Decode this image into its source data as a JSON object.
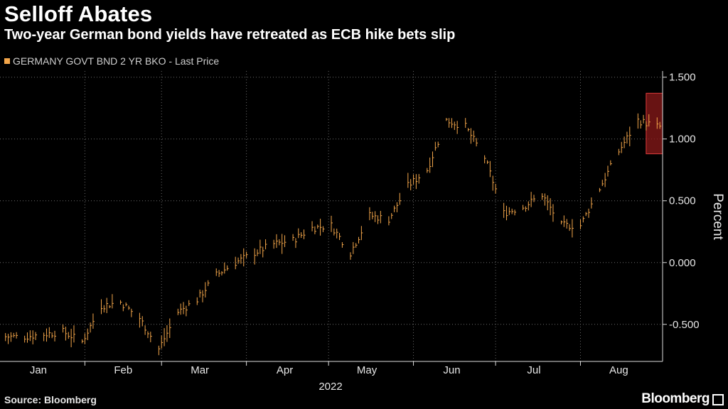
{
  "header": {
    "title": "Selloff Abates",
    "subtitle": "Two-year German bond yields have retreated as ECB hike bets slip"
  },
  "footer": {
    "source": "Source: Bloomberg",
    "brand": "Bloomberg"
  },
  "colors": {
    "background": "#000000",
    "series": "#f3a64a",
    "highlight_fill": "#8b1a1a",
    "highlight_border": "#e03c3c",
    "grid": "#6a6a6a"
  },
  "chart_data": {
    "type": "line",
    "style": "high-low bars",
    "title": "Selloff Abates",
    "subtitle": "Two-year German bond yields have retreated as ECB hike bets slip",
    "ylabel": "Percent",
    "xlabel": "2022",
    "ylim": [
      -0.8,
      1.55
    ],
    "yticks": [
      -0.5,
      0.0,
      0.5,
      1.0,
      1.5
    ],
    "ytick_labels": [
      "-0.500",
      "0.000",
      "0.500",
      "1.000",
      "1.500"
    ],
    "x_start": "2022-01-01",
    "x_end": "2022-08-31",
    "xtick_labels": [
      "Jan",
      "Feb",
      "Mar",
      "Apr",
      "May",
      "Jun",
      "Jul",
      "Aug"
    ],
    "xtick_dates": [
      "2022-01-15",
      "2022-02-15",
      "2022-03-15",
      "2022-04-15",
      "2022-05-15",
      "2022-06-15",
      "2022-07-15",
      "2022-08-15"
    ],
    "grid": true,
    "legend": "top-left",
    "series": [
      {
        "name": "GERMANY GOVT BND 2 YR BKO - Last Price",
        "points": [
          [
            "2022-01-03",
            -0.6
          ],
          [
            "2022-01-10",
            -0.6
          ],
          [
            "2022-01-17",
            -0.58
          ],
          [
            "2022-01-24",
            -0.56
          ],
          [
            "2022-01-31",
            -0.64
          ],
          [
            "2022-02-07",
            -0.35
          ],
          [
            "2022-02-14",
            -0.32
          ],
          [
            "2022-02-21",
            -0.45
          ],
          [
            "2022-02-28",
            -0.7
          ],
          [
            "2022-03-07",
            -0.4
          ],
          [
            "2022-03-14",
            -0.3
          ],
          [
            "2022-03-21",
            -0.1
          ],
          [
            "2022-03-28",
            0.0
          ],
          [
            "2022-04-04",
            0.08
          ],
          [
            "2022-04-11",
            0.15
          ],
          [
            "2022-04-18",
            0.18
          ],
          [
            "2022-04-25",
            0.28
          ],
          [
            "2022-05-02",
            0.3
          ],
          [
            "2022-05-09",
            0.08
          ],
          [
            "2022-05-16",
            0.38
          ],
          [
            "2022-05-23",
            0.35
          ],
          [
            "2022-05-30",
            0.62
          ],
          [
            "2022-06-06",
            0.75
          ],
          [
            "2022-06-13",
            1.15
          ],
          [
            "2022-06-20",
            1.1
          ],
          [
            "2022-06-27",
            0.85
          ],
          [
            "2022-07-04",
            0.4
          ],
          [
            "2022-07-11",
            0.45
          ],
          [
            "2022-07-18",
            0.55
          ],
          [
            "2022-07-25",
            0.3
          ],
          [
            "2022-08-01",
            0.3
          ],
          [
            "2022-08-08",
            0.6
          ],
          [
            "2022-08-15",
            0.9
          ],
          [
            "2022-08-22",
            1.15
          ],
          [
            "2022-08-29",
            1.1
          ]
        ]
      }
    ],
    "highlight": {
      "x_from": "2022-08-25",
      "x_to": "2022-08-31",
      "y_from": 0.88,
      "y_to": 1.37
    }
  }
}
